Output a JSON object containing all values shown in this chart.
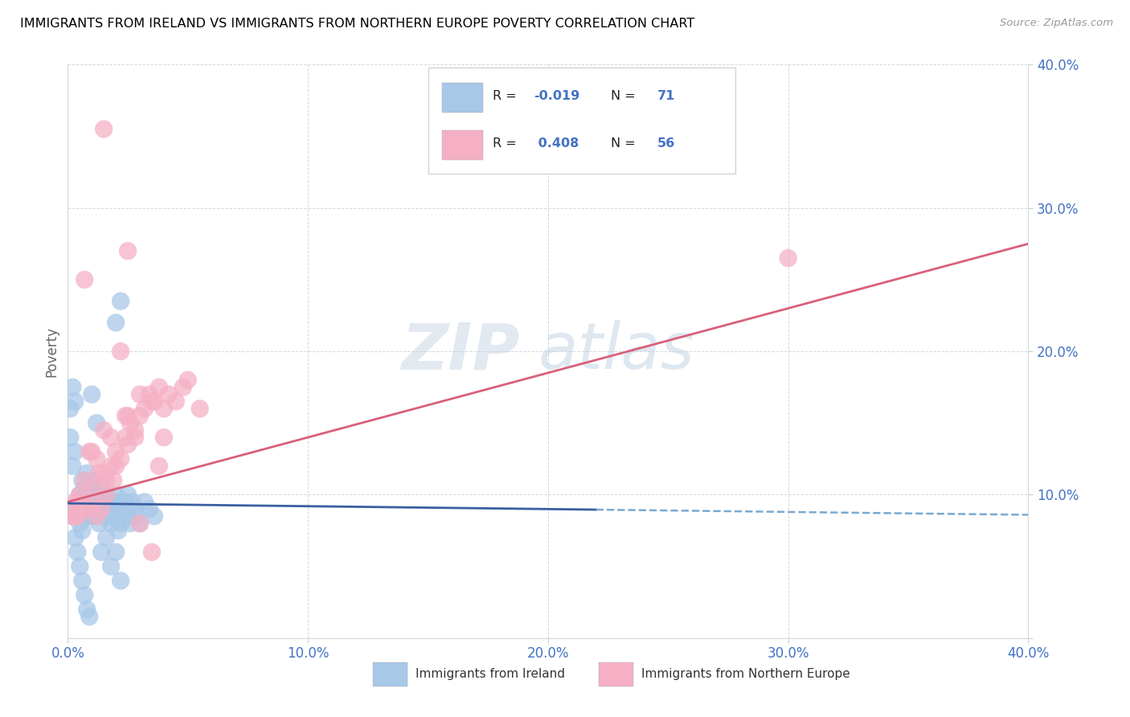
{
  "title": "IMMIGRANTS FROM IRELAND VS IMMIGRANTS FROM NORTHERN EUROPE POVERTY CORRELATION CHART",
  "source": "Source: ZipAtlas.com",
  "ylabel": "Poverty",
  "xlim": [
    0.0,
    0.4
  ],
  "ylim": [
    0.0,
    0.4
  ],
  "N1": 71,
  "N2": 56,
  "R1": -0.019,
  "R2": 0.408,
  "series1_color": "#a8c8e8",
  "series2_color": "#f5b0c5",
  "trend1_solid_color": "#3a5fa0",
  "trend1_dash_color": "#7aaad0",
  "trend2_color": "#d9607a",
  "grid_color": "#d0d8e0",
  "tick_color": "#4472c4",
  "bg_color": "#ffffff",
  "watermark_color": "#c8d8ec",
  "legend_label1": "Immigrants from Ireland",
  "legend_label2": "Immigrants from Northern Europe",
  "ireland_x": [
    0.002,
    0.003,
    0.003,
    0.004,
    0.005,
    0.005,
    0.006,
    0.006,
    0.007,
    0.007,
    0.008,
    0.008,
    0.009,
    0.009,
    0.01,
    0.01,
    0.01,
    0.011,
    0.011,
    0.012,
    0.012,
    0.013,
    0.013,
    0.014,
    0.014,
    0.015,
    0.015,
    0.016,
    0.016,
    0.017,
    0.018,
    0.018,
    0.019,
    0.02,
    0.02,
    0.021,
    0.021,
    0.022,
    0.023,
    0.024,
    0.025,
    0.025,
    0.026,
    0.027,
    0.028,
    0.029,
    0.03,
    0.032,
    0.034,
    0.036,
    0.001,
    0.001,
    0.002,
    0.003,
    0.004,
    0.005,
    0.006,
    0.007,
    0.008,
    0.009,
    0.01,
    0.012,
    0.014,
    0.016,
    0.018,
    0.02,
    0.022,
    0.002,
    0.003,
    0.02,
    0.022
  ],
  "ireland_y": [
    0.085,
    0.09,
    0.07,
    0.095,
    0.1,
    0.08,
    0.11,
    0.075,
    0.095,
    0.105,
    0.115,
    0.085,
    0.09,
    0.1,
    0.095,
    0.105,
    0.085,
    0.09,
    0.11,
    0.095,
    0.085,
    0.1,
    0.08,
    0.09,
    0.105,
    0.085,
    0.095,
    0.09,
    0.1,
    0.085,
    0.095,
    0.08,
    0.09,
    0.085,
    0.1,
    0.075,
    0.095,
    0.08,
    0.09,
    0.095,
    0.085,
    0.1,
    0.08,
    0.095,
    0.09,
    0.085,
    0.08,
    0.095,
    0.09,
    0.085,
    0.14,
    0.16,
    0.12,
    0.13,
    0.06,
    0.05,
    0.04,
    0.03,
    0.02,
    0.015,
    0.17,
    0.15,
    0.06,
    0.07,
    0.05,
    0.06,
    0.04,
    0.175,
    0.165,
    0.22,
    0.235
  ],
  "northern_x": [
    0.003,
    0.004,
    0.005,
    0.007,
    0.008,
    0.01,
    0.011,
    0.012,
    0.014,
    0.015,
    0.016,
    0.018,
    0.019,
    0.02,
    0.022,
    0.024,
    0.025,
    0.026,
    0.028,
    0.03,
    0.032,
    0.034,
    0.036,
    0.038,
    0.04,
    0.042,
    0.045,
    0.048,
    0.05,
    0.055,
    0.003,
    0.005,
    0.007,
    0.01,
    0.013,
    0.015,
    0.018,
    0.022,
    0.025,
    0.03,
    0.035,
    0.04,
    0.002,
    0.006,
    0.009,
    0.012,
    0.016,
    0.02,
    0.024,
    0.028,
    0.038,
    0.03,
    0.035,
    0.3,
    0.015,
    0.025
  ],
  "northern_y": [
    0.095,
    0.085,
    0.1,
    0.11,
    0.09,
    0.095,
    0.105,
    0.085,
    0.09,
    0.115,
    0.1,
    0.12,
    0.11,
    0.13,
    0.125,
    0.14,
    0.135,
    0.15,
    0.145,
    0.155,
    0.16,
    0.17,
    0.165,
    0.175,
    0.16,
    0.17,
    0.165,
    0.175,
    0.18,
    0.16,
    0.085,
    0.095,
    0.25,
    0.13,
    0.115,
    0.145,
    0.14,
    0.2,
    0.155,
    0.17,
    0.165,
    0.14,
    0.085,
    0.09,
    0.13,
    0.125,
    0.11,
    0.12,
    0.155,
    0.14,
    0.12,
    0.08,
    0.06,
    0.265,
    0.355,
    0.27
  ],
  "trend1_x0": 0.0,
  "trend1_x_solid_end": 0.22,
  "trend1_x1": 0.4,
  "trend1_y0": 0.094,
  "trend1_y1": 0.086,
  "trend2_x0": 0.0,
  "trend2_x1": 0.4,
  "trend2_y0": 0.095,
  "trend2_y1": 0.275
}
